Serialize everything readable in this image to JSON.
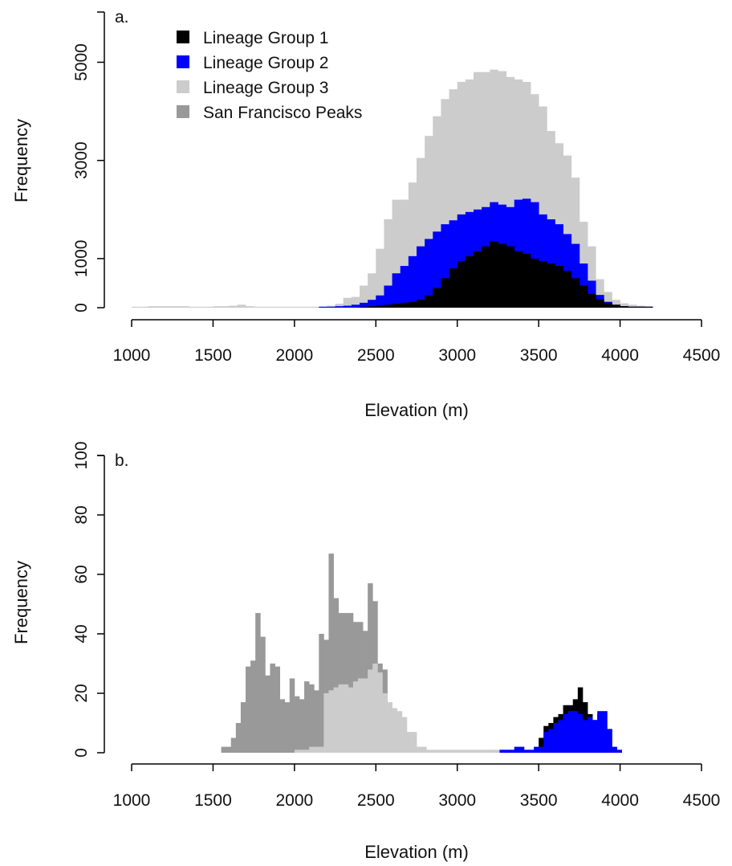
{
  "colors": {
    "lineage_1": "#000000",
    "lineage_2": "#0000ff",
    "lineage_3": "#cccccc",
    "san_francisco_peaks": "#999999",
    "axis": "#000000"
  },
  "chart_data": [
    {
      "type": "bar",
      "stacked": false,
      "panel_label": "a.",
      "xlabel": "Elevation (m)",
      "ylabel": "Frequency",
      "xlim": [
        1000,
        4500
      ],
      "ylim": [
        0,
        5000
      ],
      "x_ticks": [
        "1000",
        "1500",
        "2000",
        "2500",
        "3000",
        "3500",
        "4000",
        "4500"
      ],
      "y_ticks": [
        "0",
        "1000",
        "3000",
        "5000"
      ],
      "y_tick_values": [
        0,
        1000,
        3000,
        5000
      ],
      "legend": {
        "placement": "top-left",
        "entries": [
          "Lineage Group 1",
          "Lineage Group 2",
          "Lineage Group 3",
          "San Francisco Peaks"
        ]
      },
      "bin_width": 50,
      "series": [
        {
          "name": "Lineage Group 3",
          "color": "#cccccc",
          "bins": [
            [
              1000,
              20
            ],
            [
              1050,
              20
            ],
            [
              1100,
              30
            ],
            [
              1150,
              30
            ],
            [
              1200,
              30
            ],
            [
              1250,
              30
            ],
            [
              1300,
              30
            ],
            [
              1350,
              20
            ],
            [
              1400,
              20
            ],
            [
              1450,
              20
            ],
            [
              1500,
              30
            ],
            [
              1550,
              30
            ],
            [
              1600,
              40
            ],
            [
              1650,
              60
            ],
            [
              1700,
              30
            ],
            [
              1750,
              20
            ],
            [
              1800,
              20
            ],
            [
              1850,
              20
            ],
            [
              1900,
              20
            ],
            [
              1950,
              20
            ],
            [
              2000,
              20
            ],
            [
              2050,
              20
            ],
            [
              2100,
              20
            ],
            [
              2150,
              20
            ],
            [
              2200,
              40
            ],
            [
              2250,
              80
            ],
            [
              2300,
              200
            ],
            [
              2350,
              220
            ],
            [
              2400,
              450
            ],
            [
              2450,
              700
            ],
            [
              2500,
              1200
            ],
            [
              2550,
              1800
            ],
            [
              2600,
              2200
            ],
            [
              2650,
              2200
            ],
            [
              2700,
              2550
            ],
            [
              2750,
              3050
            ],
            [
              2800,
              3500
            ],
            [
              2850,
              3900
            ],
            [
              2900,
              4250
            ],
            [
              2950,
              4450
            ],
            [
              3000,
              4600
            ],
            [
              3050,
              4650
            ],
            [
              3100,
              4800
            ],
            [
              3150,
              4800
            ],
            [
              3200,
              4850
            ],
            [
              3250,
              4820
            ],
            [
              3300,
              4700
            ],
            [
              3350,
              4650
            ],
            [
              3400,
              4600
            ],
            [
              3450,
              4350
            ],
            [
              3500,
              4100
            ],
            [
              3550,
              3600
            ],
            [
              3600,
              3350
            ],
            [
              3650,
              3100
            ],
            [
              3700,
              2650
            ],
            [
              3750,
              1750
            ],
            [
              3800,
              1250
            ],
            [
              3850,
              580
            ],
            [
              3900,
              320
            ],
            [
              3950,
              160
            ],
            [
              4000,
              90
            ],
            [
              4050,
              60
            ],
            [
              4100,
              40
            ],
            [
              4150,
              20
            ]
          ]
        },
        {
          "name": "Lineage Group 2",
          "color": "#0000ff",
          "bins": [
            [
              2150,
              20
            ],
            [
              2200,
              20
            ],
            [
              2250,
              30
            ],
            [
              2300,
              40
            ],
            [
              2350,
              60
            ],
            [
              2400,
              100
            ],
            [
              2450,
              160
            ],
            [
              2500,
              250
            ],
            [
              2550,
              450
            ],
            [
              2600,
              700
            ],
            [
              2650,
              850
            ],
            [
              2700,
              1050
            ],
            [
              2750,
              1250
            ],
            [
              2800,
              1400
            ],
            [
              2850,
              1550
            ],
            [
              2900,
              1700
            ],
            [
              2950,
              1780
            ],
            [
              3000,
              1900
            ],
            [
              3050,
              1950
            ],
            [
              3100,
              2000
            ],
            [
              3150,
              2050
            ],
            [
              3200,
              2150
            ],
            [
              3250,
              2100
            ],
            [
              3300,
              2050
            ],
            [
              3350,
              2200
            ],
            [
              3400,
              2220
            ],
            [
              3450,
              2150
            ],
            [
              3500,
              1900
            ],
            [
              3550,
              1800
            ],
            [
              3600,
              1700
            ],
            [
              3650,
              1500
            ],
            [
              3700,
              1300
            ],
            [
              3750,
              900
            ],
            [
              3800,
              550
            ],
            [
              3850,
              260
            ],
            [
              3900,
              120
            ],
            [
              3950,
              60
            ],
            [
              4000,
              30
            ],
            [
              4050,
              20
            ],
            [
              4100,
              20
            ],
            [
              4150,
              20
            ]
          ]
        },
        {
          "name": "Lineage Group 1",
          "color": "#000000",
          "bins": [
            [
              2400,
              20
            ],
            [
              2450,
              30
            ],
            [
              2500,
              40
            ],
            [
              2550,
              60
            ],
            [
              2600,
              80
            ],
            [
              2650,
              100
            ],
            [
              2700,
              120
            ],
            [
              2750,
              160
            ],
            [
              2800,
              250
            ],
            [
              2850,
              400
            ],
            [
              2900,
              600
            ],
            [
              2950,
              800
            ],
            [
              3000,
              950
            ],
            [
              3050,
              1050
            ],
            [
              3100,
              1150
            ],
            [
              3150,
              1250
            ],
            [
              3200,
              1350
            ],
            [
              3250,
              1300
            ],
            [
              3300,
              1250
            ],
            [
              3350,
              1150
            ],
            [
              3400,
              1100
            ],
            [
              3450,
              1000
            ],
            [
              3500,
              950
            ],
            [
              3550,
              900
            ],
            [
              3600,
              850
            ],
            [
              3650,
              750
            ],
            [
              3700,
              600
            ],
            [
              3750,
              450
            ],
            [
              3800,
              280
            ],
            [
              3850,
              170
            ],
            [
              3900,
              100
            ],
            [
              3950,
              60
            ],
            [
              4000,
              30
            ],
            [
              4050,
              20
            ],
            [
              4100,
              20
            ],
            [
              4150,
              20
            ]
          ]
        }
      ]
    },
    {
      "type": "bar",
      "stacked": false,
      "panel_label": "b.",
      "xlabel": "Elevation (m)",
      "ylabel": "Frequency",
      "xlim": [
        1000,
        4500
      ],
      "ylim": [
        0,
        100
      ],
      "x_ticks": [
        "1000",
        "1500",
        "2000",
        "2500",
        "3000",
        "3500",
        "4000",
        "4500"
      ],
      "y_ticks": [
        "0",
        "20",
        "40",
        "60",
        "80",
        "100"
      ],
      "y_tick_values": [
        0,
        20,
        40,
        60,
        80,
        100
      ],
      "bin_width": 30,
      "series": [
        {
          "name": "San Francisco Peaks",
          "color": "#999999",
          "bins": [
            [
              1550,
              2
            ],
            [
              1580,
              2
            ],
            [
              1610,
              5
            ],
            [
              1640,
              10
            ],
            [
              1670,
              17
            ],
            [
              1700,
              29
            ],
            [
              1730,
              31
            ],
            [
              1760,
              47
            ],
            [
              1790,
              39
            ],
            [
              1820,
              26
            ],
            [
              1850,
              30
            ],
            [
              1880,
              29
            ],
            [
              1910,
              18
            ],
            [
              1940,
              17
            ],
            [
              1970,
              25
            ],
            [
              2000,
              19
            ],
            [
              2030,
              18
            ],
            [
              2060,
              24
            ],
            [
              2090,
              23
            ],
            [
              2120,
              21
            ],
            [
              2150,
              40
            ],
            [
              2180,
              38
            ],
            [
              2210,
              67
            ],
            [
              2240,
              52
            ],
            [
              2270,
              47
            ],
            [
              2300,
              47
            ],
            [
              2330,
              47
            ],
            [
              2360,
              44
            ],
            [
              2390,
              44
            ],
            [
              2420,
              41
            ],
            [
              2450,
              57
            ],
            [
              2480,
              51
            ],
            [
              2510,
              30
            ],
            [
              2540,
              28
            ],
            [
              2570,
              14
            ],
            [
              2600,
              12
            ],
            [
              2630,
              5
            ],
            [
              2660,
              1
            ],
            [
              2690,
              1
            ]
          ]
        },
        {
          "name": "Lineage Group 3",
          "color": "#cccccc",
          "bins": [
            [
              2000,
              1
            ],
            [
              2030,
              1
            ],
            [
              2060,
              1
            ],
            [
              2090,
              2
            ],
            [
              2120,
              2
            ],
            [
              2150,
              2
            ],
            [
              2180,
              20
            ],
            [
              2210,
              21
            ],
            [
              2240,
              22
            ],
            [
              2270,
              23
            ],
            [
              2300,
              23
            ],
            [
              2330,
              22
            ],
            [
              2360,
              24
            ],
            [
              2390,
              25
            ],
            [
              2420,
              25
            ],
            [
              2450,
              28
            ],
            [
              2480,
              30
            ],
            [
              2510,
              27
            ],
            [
              2540,
              20
            ],
            [
              2570,
              17
            ],
            [
              2600,
              15
            ],
            [
              2630,
              14
            ],
            [
              2660,
              12
            ],
            [
              2690,
              7
            ],
            [
              2720,
              7
            ],
            [
              2750,
              2
            ],
            [
              2780,
              2
            ],
            [
              2810,
              1
            ],
            [
              2840,
              1
            ],
            [
              2870,
              1
            ],
            [
              2900,
              1
            ],
            [
              2930,
              1
            ],
            [
              2960,
              1
            ],
            [
              2990,
              1
            ],
            [
              3020,
              1
            ],
            [
              3050,
              1
            ],
            [
              3080,
              1
            ],
            [
              3110,
              1
            ],
            [
              3140,
              1
            ],
            [
              3170,
              1
            ],
            [
              3200,
              1
            ],
            [
              3230,
              1
            ]
          ]
        },
        {
          "name": "Lineage Group 1",
          "color": "#000000",
          "bins": [
            [
              3500,
              5
            ],
            [
              3530,
              9
            ],
            [
              3560,
              10
            ],
            [
              3590,
              12
            ],
            [
              3620,
              13
            ],
            [
              3650,
              16
            ],
            [
              3680,
              16
            ],
            [
              3710,
              18
            ],
            [
              3740,
              22
            ],
            [
              3770,
              17
            ],
            [
              3800,
              13
            ],
            [
              3830,
              11
            ],
            [
              3860,
              13
            ]
          ]
        },
        {
          "name": "Lineage Group 2",
          "color": "#0000ff",
          "bins": [
            [
              3260,
              1
            ],
            [
              3290,
              1
            ],
            [
              3320,
              1
            ],
            [
              3350,
              2
            ],
            [
              3380,
              2
            ],
            [
              3410,
              1
            ],
            [
              3440,
              1
            ],
            [
              3470,
              2
            ],
            [
              3500,
              2
            ],
            [
              3530,
              7
            ],
            [
              3560,
              8
            ],
            [
              3590,
              10
            ],
            [
              3620,
              11
            ],
            [
              3650,
              13
            ],
            [
              3680,
              14
            ],
            [
              3710,
              14
            ],
            [
              3740,
              13
            ],
            [
              3770,
              11
            ],
            [
              3800,
              12
            ],
            [
              3830,
              11
            ],
            [
              3860,
              14
            ],
            [
              3890,
              14
            ],
            [
              3920,
              8
            ],
            [
              3950,
              2
            ],
            [
              3980,
              1
            ]
          ]
        }
      ]
    }
  ]
}
